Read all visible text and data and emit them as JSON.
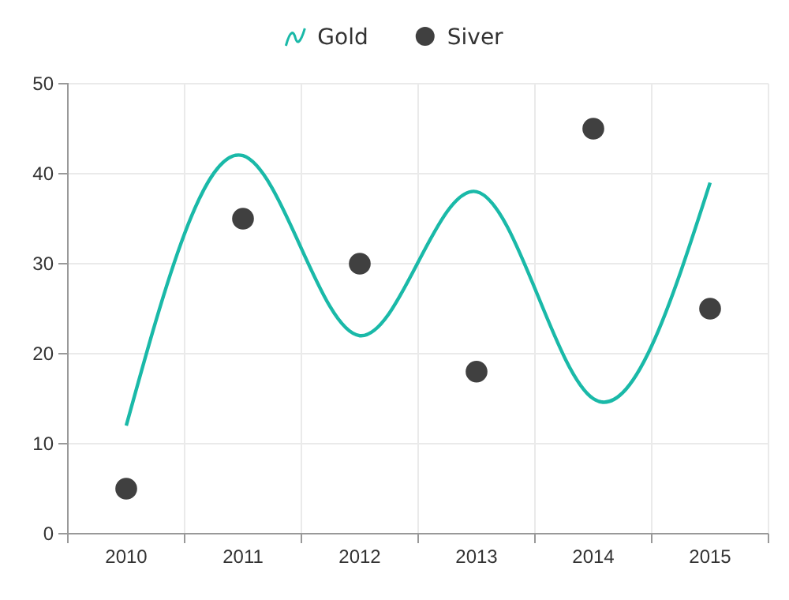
{
  "chart_data": {
    "type": "line",
    "categories": [
      "2010",
      "2011",
      "2012",
      "2013",
      "2014",
      "2015"
    ],
    "series": [
      {
        "name": "Gold",
        "color": "#1ab9a8",
        "marker": "none",
        "values": [
          12,
          42,
          22,
          38,
          15,
          39
        ]
      },
      {
        "name": "Siver",
        "type": "scatter",
        "color": "#404040",
        "marker": "circle",
        "values": [
          5,
          35,
          30,
          18,
          45,
          25
        ]
      }
    ],
    "ylim": [
      0,
      50
    ],
    "yticks": [
      0,
      10,
      20,
      30,
      40,
      50
    ],
    "grid": true,
    "legend": "top"
  }
}
